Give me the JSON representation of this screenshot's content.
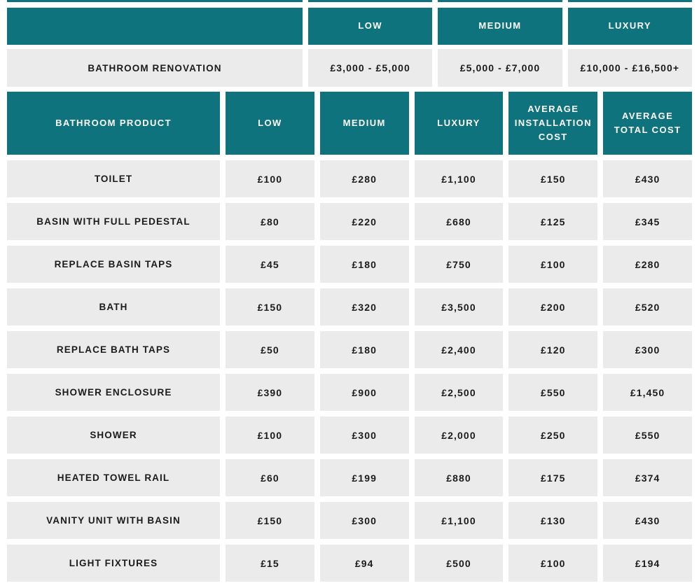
{
  "colors": {
    "teal": "#0f737e",
    "cell_gray": "#ebebeb",
    "text_dark": "#1b1b1b",
    "header_text": "#ffffff",
    "background": "#ffffff"
  },
  "summary_table": {
    "headers": {
      "blank": "",
      "low": "LOW",
      "medium": "MEDIUM",
      "luxury": "LUXURY"
    },
    "row": {
      "label": "BATHROOM RENOVATION",
      "low": "£3,000 - £5,000",
      "medium": "£5,000 - £7,000",
      "luxury": "£10,000 - £16,500+"
    }
  },
  "product_table": {
    "headers": {
      "product": "BATHROOM PRODUCT",
      "low": "LOW",
      "medium": "MEDIUM",
      "luxury": "LUXURY",
      "installation": "AVERAGE INSTALLATION COST",
      "total": "AVERAGE TOTAL COST"
    },
    "rows": [
      {
        "product": "TOILET",
        "low": "£100",
        "medium": "£280",
        "luxury": "£1,100",
        "installation": "£150",
        "total": "£430"
      },
      {
        "product": "BASIN WITH FULL PEDESTAL",
        "low": "£80",
        "medium": "£220",
        "luxury": "£680",
        "installation": "£125",
        "total": "£345"
      },
      {
        "product": "REPLACE BASIN TAPS",
        "low": "£45",
        "medium": "£180",
        "luxury": "£750",
        "installation": "£100",
        "total": "£280"
      },
      {
        "product": "BATH",
        "low": "£150",
        "medium": "£320",
        "luxury": "£3,500",
        "installation": "£200",
        "total": "£520"
      },
      {
        "product": "REPLACE BATH TAPS",
        "low": "£50",
        "medium": "£180",
        "luxury": "£2,400",
        "installation": "£120",
        "total": "£300"
      },
      {
        "product": "SHOWER ENCLOSURE",
        "low": "£390",
        "medium": "£900",
        "luxury": "£2,500",
        "installation": "£550",
        "total": "£1,450"
      },
      {
        "product": "SHOWER",
        "low": "£100",
        "medium": "£300",
        "luxury": "£2,000",
        "installation": "£250",
        "total": "£550"
      },
      {
        "product": "HEATED TOWEL RAIL",
        "low": "£60",
        "medium": "£199",
        "luxury": "£880",
        "installation": "£175",
        "total": "£374"
      },
      {
        "product": "VANITY UNIT WITH BASIN",
        "low": "£150",
        "medium": "£300",
        "luxury": "£1,100",
        "installation": "£130",
        "total": "£430"
      },
      {
        "product": "LIGHT FIXTURES",
        "low": "£15",
        "medium": "£94",
        "luxury": "£500",
        "installation": "£100",
        "total": "£194"
      }
    ]
  },
  "chart_data": [
    {
      "type": "table",
      "title": "Bathroom renovation total cost by finish level",
      "columns": [
        "BATHROOM RENOVATION",
        "LOW",
        "MEDIUM",
        "LUXURY"
      ],
      "rows": [
        [
          "BATHROOM RENOVATION",
          "£3,000 - £5,000",
          "£5,000 - £7,000",
          "£10,000 - £16,500+"
        ]
      ]
    },
    {
      "type": "table",
      "title": "Bathroom product costs",
      "columns": [
        "BATHROOM PRODUCT",
        "LOW",
        "MEDIUM",
        "LUXURY",
        "AVERAGE INSTALLATION COST",
        "AVERAGE TOTAL COST"
      ],
      "rows": [
        [
          "TOILET",
          100,
          280,
          1100,
          150,
          430
        ],
        [
          "BASIN WITH FULL PEDESTAL",
          80,
          220,
          680,
          125,
          345
        ],
        [
          "REPLACE BASIN TAPS",
          45,
          180,
          750,
          100,
          280
        ],
        [
          "BATH",
          150,
          320,
          3500,
          200,
          520
        ],
        [
          "REPLACE BATH TAPS",
          50,
          180,
          2400,
          120,
          300
        ],
        [
          "SHOWER ENCLOSURE",
          390,
          900,
          2500,
          550,
          1450
        ],
        [
          "SHOWER",
          100,
          300,
          2000,
          250,
          550
        ],
        [
          "HEATED TOWEL RAIL",
          60,
          199,
          880,
          175,
          374
        ],
        [
          "VANITY UNIT WITH BASIN",
          150,
          300,
          1100,
          130,
          430
        ],
        [
          "LIGHT FIXTURES",
          15,
          94,
          500,
          100,
          194
        ]
      ],
      "currency": "GBP",
      "unit_prefix": "£"
    }
  ]
}
